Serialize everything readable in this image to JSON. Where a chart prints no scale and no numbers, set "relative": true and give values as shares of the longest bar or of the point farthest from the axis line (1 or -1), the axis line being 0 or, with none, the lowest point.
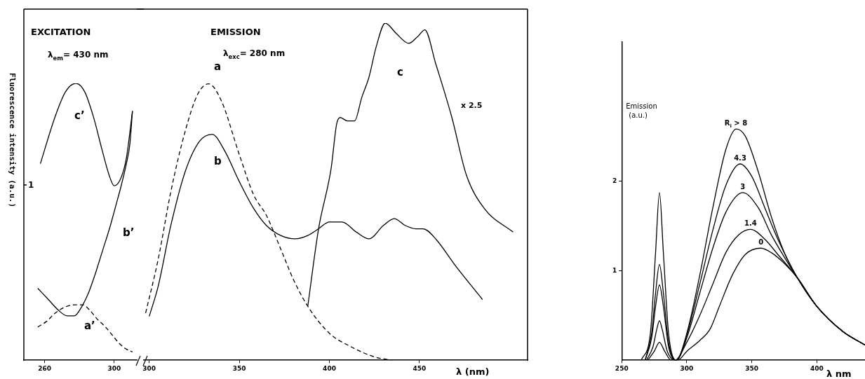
{
  "chart_data": [
    {
      "type": "line",
      "relative": true,
      "title": "EXCITATION",
      "subtitle": "λ$_{em}$= 430 nm",
      "ylabel": "Fluorescence intensity (a.u.)",
      "xlim": [
        248,
        313
      ],
      "xticks": [
        260,
        300
      ],
      "grid": false,
      "legend": false,
      "marker": "none",
      "annotations": [
        "1"
      ],
      "series": [
        {
          "name": "c’",
          "color": "#000000",
          "line_style": "solid",
          "x": [
            257.5,
            266,
            272,
            278,
            283,
            288,
            293,
            297,
            300,
            304,
            307,
            310.5
          ],
          "values": [
            0.71,
            0.88,
            0.97,
            1.0,
            0.97,
            0.88,
            0.76,
            0.67,
            0.63,
            0.66,
            0.73,
            0.9
          ]
        },
        {
          "name": "b’",
          "color": "#000000",
          "line_style": "solid",
          "x": [
            256,
            262,
            268,
            273,
            277,
            281,
            285,
            289,
            293,
            297.5,
            301,
            304,
            307,
            309,
            310.5
          ],
          "values": [
            0.26,
            0.22,
            0.18,
            0.16,
            0.16,
            0.19,
            0.24,
            0.31,
            0.39,
            0.48,
            0.56,
            0.63,
            0.71,
            0.78,
            0.9
          ]
        },
        {
          "name": "a’",
          "color": "#000000",
          "line_style": "dashed",
          "x": [
            256,
            261,
            266,
            271,
            277,
            282,
            286,
            290,
            295,
            299,
            303,
            307,
            310.5
          ],
          "values": [
            0.12,
            0.14,
            0.17,
            0.19,
            0.2,
            0.2,
            0.18,
            0.15,
            0.12,
            0.09,
            0.06,
            0.04,
            0.03
          ]
        }
      ]
    },
    {
      "type": "line",
      "relative": true,
      "title": "EMISSION",
      "subtitle": "λ$_{exc}$= 280 nm",
      "xlabel": "λ (nm)",
      "xlim": [
        297,
        510
      ],
      "xticks": [
        300,
        350,
        400,
        450
      ],
      "grid": false,
      "legend": false,
      "marker": "none",
      "annotations": [
        "x 2.5"
      ],
      "series": [
        {
          "name": "a",
          "color": "#000000",
          "line_style": "dashed",
          "x": [
            298,
            305,
            312,
            320,
            327,
            333,
            340,
            350,
            358,
            365,
            373,
            380,
            388,
            400,
            412,
            425,
            435
          ],
          "values": [
            0.14,
            0.3,
            0.5,
            0.68,
            0.79,
            0.82,
            0.77,
            0.61,
            0.49,
            0.43,
            0.33,
            0.24,
            0.16,
            0.08,
            0.04,
            0.01,
            0
          ]
        },
        {
          "name": "b",
          "color": "#000000",
          "line_style": "solid",
          "x": [
            300,
            305,
            312,
            320,
            328,
            335,
            342,
            350,
            358,
            365,
            373,
            381,
            388,
            394,
            400,
            407,
            415,
            422,
            430,
            436,
            442,
            448,
            452,
            459,
            470,
            485
          ],
          "values": [
            0.13,
            0.22,
            0.4,
            0.56,
            0.65,
            0.67,
            0.62,
            0.53,
            0.45,
            0.4,
            0.37,
            0.36,
            0.37,
            0.39,
            0.41,
            0.41,
            0.38,
            0.36,
            0.4,
            0.42,
            0.4,
            0.39,
            0.39,
            0.36,
            0.28,
            0.18
          ]
        },
        {
          "name": "c",
          "color": "#000000",
          "line_style": "solid",
          "x": [
            388,
            394,
            401,
            404,
            406,
            410,
            414,
            418,
            422,
            426,
            431,
            437,
            444,
            449,
            453,
            459,
            468,
            476,
            486,
            502
          ],
          "values": [
            0.16,
            0.39,
            0.57,
            0.7,
            0.72,
            0.71,
            0.71,
            0.78,
            0.84,
            0.93,
            1.0,
            0.97,
            0.94,
            0.96,
            0.98,
            0.88,
            0.72,
            0.55,
            0.45,
            0.38
          ]
        }
      ]
    },
    {
      "type": "line",
      "ylabel": "Emission (a.u.)",
      "xlabel": "λ nm",
      "xlim": [
        250,
        437
      ],
      "xticks": [
        250,
        300,
        350,
        400
      ],
      "ylim": [
        0,
        3.55
      ],
      "yticks": [
        1,
        2
      ],
      "grid": false,
      "legend": false,
      "marker": "none",
      "line_style": "solid",
      "series": [
        {
          "name": "R$_{i}$ > 8",
          "color": "#000000",
          "x": [
            265,
            272,
            276,
            279,
            282,
            286,
            292,
            300,
            310,
            320,
            330,
            338,
            345,
            355,
            365,
            375,
            385,
            400,
            420,
            437
          ],
          "values": [
            0,
            0.3,
            1.2,
            1.87,
            1.2,
            0.3,
            0,
            0.3,
            0.95,
            1.7,
            2.35,
            2.58,
            2.5,
            2.1,
            1.6,
            1.2,
            0.92,
            0.6,
            0.32,
            0.17
          ]
        },
        {
          "name": "4.3",
          "color": "#000000",
          "x": [
            268,
            273,
            276,
            279,
            282,
            286,
            292,
            300,
            310,
            320,
            330,
            341,
            350,
            360,
            370,
            385,
            400,
            420,
            437
          ],
          "values": [
            0,
            0.3,
            0.75,
            1.07,
            0.75,
            0.2,
            0,
            0.28,
            0.85,
            1.45,
            1.95,
            2.19,
            2.05,
            1.7,
            1.35,
            0.92,
            0.6,
            0.32,
            0.17
          ]
        },
        {
          "name": "3",
          "color": "#000000",
          "x": [
            268,
            273,
            276,
            279,
            282,
            286,
            292,
            300,
            310,
            320,
            330,
            343,
            355,
            365,
            375,
            385,
            400,
            420,
            437
          ],
          "values": [
            0,
            0.25,
            0.6,
            0.84,
            0.6,
            0.15,
            0,
            0.25,
            0.75,
            1.25,
            1.65,
            1.87,
            1.7,
            1.4,
            1.15,
            0.92,
            0.6,
            0.32,
            0.17
          ]
        },
        {
          "name": "1.4",
          "color": "#000000",
          "x": [
            269,
            274,
            277,
            279,
            281,
            285,
            291,
            300,
            310,
            320,
            330,
            340,
            349,
            360,
            370,
            385,
            400,
            420,
            437
          ],
          "values": [
            0,
            0.15,
            0.35,
            0.44,
            0.35,
            0.1,
            0,
            0.2,
            0.5,
            0.85,
            1.2,
            1.4,
            1.46,
            1.35,
            1.18,
            0.92,
            0.6,
            0.32,
            0.17
          ]
        },
        {
          "name": "0",
          "color": "#000000",
          "x": [
            270,
            275,
            279,
            283,
            288,
            293,
            300,
            310,
            318,
            325,
            335,
            345,
            357,
            365,
            375,
            385,
            400,
            420,
            437
          ],
          "values": [
            0,
            0.1,
            0.2,
            0.1,
            0,
            0,
            0.1,
            0.22,
            0.35,
            0.6,
            0.95,
            1.18,
            1.25,
            1.2,
            1.08,
            0.92,
            0.6,
            0.32,
            0.17
          ]
        }
      ]
    }
  ]
}
